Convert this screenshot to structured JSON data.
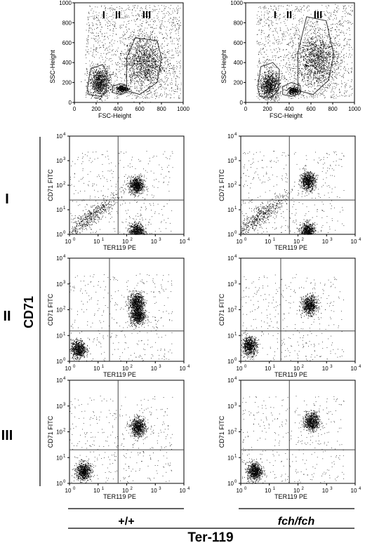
{
  "figure": {
    "genotypes": [
      "+/+",
      "fch/fch"
    ],
    "marker_x": "Ter-119",
    "marker_y": "CD71",
    "row_labels": [
      "I",
      "II",
      "III"
    ]
  },
  "scatter_panel": {
    "xlabel": "FSC-Height",
    "ylabel": "SSC-Height",
    "xticks": [
      "0",
      "200",
      "400",
      "600",
      "800",
      "1000"
    ],
    "yticks": [
      "0",
      "200",
      "400",
      "600",
      "800",
      "1000"
    ],
    "gate_labels": [
      "I",
      "II",
      "III"
    ]
  },
  "facs_panel": {
    "xlabel": "TER119 PE",
    "ylabel": "CD71 FITC",
    "xticks": [
      "10",
      "10",
      "10",
      "10",
      "10"
    ],
    "xtick_exp": [
      "0",
      "1",
      "2",
      "3",
      "4"
    ],
    "yticks": [
      "10",
      "10",
      "10",
      "10",
      "10"
    ],
    "ytick_exp": [
      "0",
      "1",
      "2",
      "3",
      "4"
    ]
  },
  "chart_data": [
    {
      "type": "scatter",
      "panel": "+/+ FSC vs SSC",
      "xlabel": "FSC-Height",
      "ylabel": "SSC-Height",
      "xlim": [
        0,
        1000
      ],
      "ylim": [
        0,
        1000
      ],
      "gates": [
        {
          "label": "I",
          "x": [
            130,
            240,
            290,
            300,
            260,
            150,
            120
          ],
          "y": [
            80,
            60,
            100,
            300,
            380,
            340,
            150
          ]
        },
        {
          "label": "II",
          "x": [
            350,
            420,
            480,
            480,
            420,
            350
          ],
          "y": [
            100,
            80,
            100,
            170,
            190,
            160
          ]
        },
        {
          "label": "III",
          "x": [
            480,
            600,
            760,
            800,
            760,
            560,
            480
          ],
          "y": [
            120,
            80,
            200,
            450,
            620,
            650,
            450
          ]
        }
      ],
      "clusters": [
        {
          "gate": "I",
          "x_center": 230,
          "y_center": 200
        },
        {
          "gate": "II",
          "x_center": 440,
          "y_center": 140
        },
        {
          "gate": "III",
          "x_center": 640,
          "y_center": 400
        }
      ]
    },
    {
      "type": "scatter",
      "panel": "fch/fch FSC vs SSC",
      "xlabel": "FSC-Height",
      "ylabel": "SSC-Height",
      "xlim": [
        0,
        1000
      ],
      "ylim": [
        0,
        1000
      ],
      "gates": [
        {
          "label": "I",
          "x": [
            130,
            240,
            300,
            310,
            250,
            140,
            110
          ],
          "y": [
            60,
            50,
            120,
            330,
            400,
            360,
            150
          ]
        },
        {
          "label": "II",
          "x": [
            340,
            420,
            500,
            500,
            420,
            340
          ],
          "y": [
            80,
            60,
            90,
            170,
            200,
            160
          ]
        },
        {
          "label": "III",
          "x": [
            480,
            620,
            760,
            810,
            740,
            560,
            480
          ],
          "y": [
            120,
            80,
            220,
            480,
            820,
            860,
            500
          ]
        }
      ],
      "clusters": [
        {
          "gate": "I",
          "x_center": 220,
          "y_center": 170
        },
        {
          "gate": "II",
          "x_center": 440,
          "y_center": 120
        },
        {
          "gate": "III",
          "x_center": 650,
          "y_center": 430
        }
      ]
    },
    {
      "type": "scatter",
      "panel": "I +/+",
      "xlabel": "TER119 PE",
      "ylabel": "CD71 FITC",
      "xlim": [
        1,
        10000
      ],
      "ylim": [
        1,
        10000
      ],
      "log": true,
      "quadrant_lines": {
        "x": 50,
        "y": 25
      },
      "clusters": [
        {
          "x_center": 220,
          "y_center": 100
        },
        {
          "x_center": 220,
          "y_center": 1.3
        },
        {
          "x_center": 5,
          "y_center": 5,
          "diffuse": true
        }
      ]
    },
    {
      "type": "scatter",
      "panel": "I fch/fch",
      "xlabel": "TER119 PE",
      "ylabel": "CD71 FITC",
      "xlim": [
        1,
        10000
      ],
      "ylim": [
        1,
        10000
      ],
      "log": true,
      "quadrant_lines": {
        "x": 50,
        "y": 25
      },
      "clusters": [
        {
          "x_center": 220,
          "y_center": 150
        },
        {
          "x_center": 220,
          "y_center": 1.3
        },
        {
          "x_center": 5,
          "y_center": 6,
          "diffuse": true
        }
      ]
    },
    {
      "type": "scatter",
      "panel": "II +/+",
      "xlabel": "TER119 PE",
      "ylabel": "CD71 FITC",
      "xlim": [
        1,
        10000
      ],
      "ylim": [
        1,
        10000
      ],
      "log": true,
      "quadrant_lines": {
        "x": 25,
        "y": 15
      },
      "clusters": [
        {
          "x_center": 220,
          "y_center": 200
        },
        {
          "x_center": 240,
          "y_center": 60
        },
        {
          "x_center": 2,
          "y_center": 3
        }
      ]
    },
    {
      "type": "scatter",
      "panel": "II fch/fch",
      "xlabel": "TER119 PE",
      "ylabel": "CD71 FITC",
      "xlim": [
        1,
        10000
      ],
      "ylim": [
        1,
        10000
      ],
      "log": true,
      "quadrant_lines": {
        "x": 25,
        "y": 15
      },
      "clusters": [
        {
          "x_center": 250,
          "y_center": 150
        },
        {
          "x_center": 2,
          "y_center": 4
        }
      ]
    },
    {
      "type": "scatter",
      "panel": "III +/+",
      "xlabel": "TER119 PE",
      "ylabel": "CD71 FITC",
      "xlim": [
        1,
        10000
      ],
      "ylim": [
        1,
        10000
      ],
      "log": true,
      "quadrant_lines": {
        "x": 50,
        "y": 20
      },
      "clusters": [
        {
          "x_center": 250,
          "y_center": 150
        },
        {
          "x_center": 3,
          "y_center": 3
        }
      ]
    },
    {
      "type": "scatter",
      "panel": "III fch/fch",
      "xlabel": "TER119 PE",
      "ylabel": "CD71 FITC",
      "xlim": [
        1,
        10000
      ],
      "ylim": [
        1,
        10000
      ],
      "log": true,
      "quadrant_lines": {
        "x": 50,
        "y": 20
      },
      "clusters": [
        {
          "x_center": 300,
          "y_center": 250
        },
        {
          "x_center": 3,
          "y_center": 3
        }
      ]
    }
  ]
}
